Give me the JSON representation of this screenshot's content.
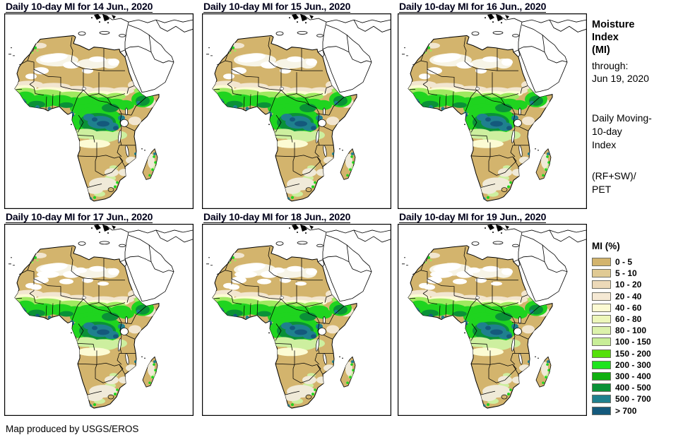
{
  "panels": [
    {
      "title": "Daily 10-day MI for 14 Jun., 2020"
    },
    {
      "title": "Daily 10-day MI for 15 Jun., 2020"
    },
    {
      "title": "Daily 10-day MI for 16 Jun., 2020"
    },
    {
      "title": "Daily 10-day MI for 17 Jun., 2020"
    },
    {
      "title": "Daily 10-day MI for 18 Jun., 2020"
    },
    {
      "title": "Daily 10-day MI for 19 Jun., 2020"
    }
  ],
  "sidebar": {
    "title_lines": [
      "Moisture",
      "Index",
      "(MI)"
    ],
    "through_label": "through:",
    "through_date": "Jun 19, 2020",
    "index_lines": [
      "Daily Moving-",
      "10-day",
      "Index"
    ],
    "formula_lines": [
      "(RF+SW)/",
      "PET"
    ]
  },
  "legend": {
    "title": "MI (%)",
    "items": [
      {
        "label": "0 - 5",
        "color": "#d3b46d"
      },
      {
        "label": "5 - 10",
        "color": "#e0ca94"
      },
      {
        "label": "10 - 20",
        "color": "#ecd9b8"
      },
      {
        "label": "20 - 40",
        "color": "#f5e9d4"
      },
      {
        "label": "40 - 60",
        "color": "#fcfbd3"
      },
      {
        "label": "60 - 80",
        "color": "#edf7ba"
      },
      {
        "label": "80 - 100",
        "color": "#dcf2ab"
      },
      {
        "label": "100 - 150",
        "color": "#c8ee97"
      },
      {
        "label": "150 - 200",
        "color": "#55e00a"
      },
      {
        "label": "200 - 300",
        "color": "#1ee41e"
      },
      {
        "label": "300 - 400",
        "color": "#10b010"
      },
      {
        "label": "400 - 500",
        "color": "#0a9137"
      },
      {
        "label": "500 - 700",
        "color": "#1f808e"
      },
      {
        "label": "> 700",
        "color": "#14597c"
      }
    ]
  },
  "credit": "Map produced by USGS/EROS"
}
